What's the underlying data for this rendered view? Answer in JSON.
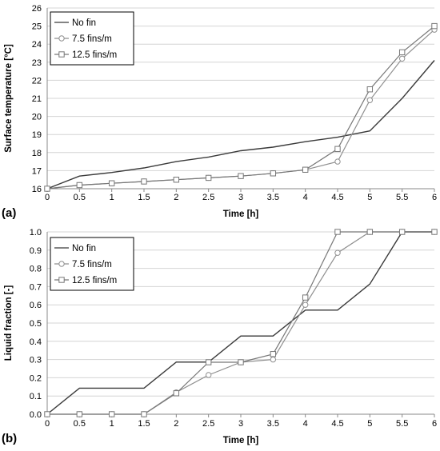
{
  "colors": {
    "no_fin": "#3a3a3a",
    "fins_7_5": "#8f8f8f",
    "fins_12_5": "#777777",
    "grid": "#d4d4d4"
  },
  "chart_data": [
    {
      "type": "line",
      "panel_label": "(a)",
      "xlabel": "Time [h]",
      "ylabel": "Surface temperature [°C]",
      "x": [
        0,
        0.5,
        1,
        1.5,
        2,
        2.5,
        3,
        3.5,
        4,
        4.5,
        5,
        5.5,
        6
      ],
      "x_tick_labels": [
        "0",
        "0.5",
        "1",
        "1.5",
        "2",
        "2.5",
        "3",
        "3.5",
        "4",
        "4.5",
        "5",
        "5.5",
        "6"
      ],
      "xlim": [
        0,
        6
      ],
      "ylim": [
        16,
        26
      ],
      "y_ticks": [
        16,
        17,
        18,
        19,
        20,
        21,
        22,
        23,
        24,
        25,
        26
      ],
      "y_tick_labels": [
        "16",
        "17",
        "18",
        "19",
        "20",
        "21",
        "22",
        "23",
        "24",
        "25",
        "26"
      ],
      "grid": "horizontal",
      "legend_position": "top-left",
      "series": [
        {
          "name": "No fin",
          "marker": "none",
          "values": [
            16.0,
            16.7,
            16.9,
            17.15,
            17.5,
            17.75,
            18.1,
            18.3,
            18.6,
            18.85,
            19.2,
            21.0,
            23.1
          ]
        },
        {
          "name": "7.5 fins/m",
          "marker": "circle",
          "values": [
            16.0,
            16.2,
            16.3,
            16.4,
            16.5,
            16.6,
            16.7,
            16.85,
            17.05,
            17.5,
            20.9,
            23.2,
            24.8
          ]
        },
        {
          "name": "12.5 fins/m",
          "marker": "square",
          "values": [
            16.0,
            16.2,
            16.3,
            16.4,
            16.5,
            16.6,
            16.7,
            16.85,
            17.05,
            18.2,
            21.5,
            23.55,
            25.0
          ]
        }
      ]
    },
    {
      "type": "line",
      "panel_label": "(b)",
      "xlabel": "Time [h]",
      "ylabel": "Liquid fraction [-]",
      "x": [
        0,
        0.5,
        1,
        1.5,
        2,
        2.5,
        3,
        3.5,
        4,
        4.5,
        5,
        5.5,
        6
      ],
      "x_tick_labels": [
        "0",
        "0.5",
        "1",
        "1.5",
        "2",
        "2.5",
        "3",
        "3.5",
        "4",
        "4.5",
        "5",
        "5.5",
        "6"
      ],
      "xlim": [
        0,
        6
      ],
      "ylim": [
        0,
        1
      ],
      "y_ticks": [
        0,
        0.1,
        0.2,
        0.3,
        0.4,
        0.5,
        0.6,
        0.7,
        0.8,
        0.9,
        1.0
      ],
      "y_tick_labels": [
        "0.0",
        "0.1",
        "0.2",
        "0.3",
        "0.4",
        "0.5",
        "0.6",
        "0.7",
        "0.8",
        "0.9",
        "1.0"
      ],
      "grid": "horizontal",
      "legend_position": "top-left",
      "series": [
        {
          "name": "No fin",
          "marker": "none",
          "values": [
            0.0,
            0.143,
            0.143,
            0.143,
            0.286,
            0.286,
            0.429,
            0.429,
            0.571,
            0.571,
            0.714,
            1.0,
            1.0
          ]
        },
        {
          "name": "7.5 fins/m",
          "marker": "circle",
          "values": [
            0.0,
            0.0,
            0.0,
            0.0,
            0.12,
            0.215,
            0.285,
            0.3,
            0.6,
            0.885,
            1.0,
            1.0,
            1.0
          ]
        },
        {
          "name": "12.5 fins/m",
          "marker": "square",
          "values": [
            0.0,
            0.0,
            0.0,
            0.0,
            0.115,
            0.285,
            0.285,
            0.33,
            0.64,
            1.0,
            1.0,
            1.0,
            1.0
          ]
        }
      ]
    }
  ]
}
